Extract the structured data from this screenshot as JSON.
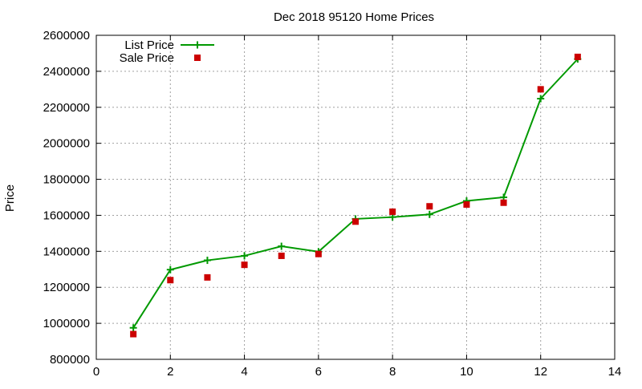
{
  "chart_data": {
    "type": "line",
    "title": "Dec 2018 95120 Home Prices",
    "xlabel": "",
    "ylabel": "Price",
    "xlim": [
      0,
      14
    ],
    "ylim": [
      800000,
      2600000
    ],
    "x_ticks": [
      0,
      2,
      4,
      6,
      8,
      10,
      12,
      14
    ],
    "y_ticks": [
      800000,
      1000000,
      1200000,
      1400000,
      1600000,
      1800000,
      2000000,
      2200000,
      2400000,
      2600000
    ],
    "x_tick_labels": [
      "0",
      "2",
      "4",
      "6",
      "8",
      "10",
      "12",
      "14"
    ],
    "y_tick_labels": [
      "800000",
      "1000000",
      "1200000",
      "1400000",
      "1600000",
      "1800000",
      "2000000",
      "2200000",
      "2400000",
      "2600000"
    ],
    "grid": true,
    "legend_position": "top-left",
    "series": [
      {
        "name": "List Price",
        "style": "line-points",
        "color": "#009900",
        "marker": "plus",
        "x": [
          1,
          2,
          3,
          4,
          5,
          6,
          7,
          8,
          9,
          10,
          11,
          12,
          13
        ],
        "y": [
          975000,
          1298000,
          1350000,
          1375000,
          1428000,
          1398000,
          1580000,
          1590000,
          1605000,
          1680000,
          1700000,
          2248000,
          2468000
        ]
      },
      {
        "name": "Sale Price",
        "style": "points",
        "color": "#cc0000",
        "marker": "square",
        "x": [
          1,
          2,
          3,
          4,
          5,
          6,
          7,
          8,
          9,
          10,
          11,
          12,
          13
        ],
        "y": [
          940000,
          1240000,
          1255000,
          1325000,
          1375000,
          1385000,
          1565000,
          1620000,
          1650000,
          1660000,
          1670000,
          2300000,
          2480000
        ]
      }
    ]
  }
}
